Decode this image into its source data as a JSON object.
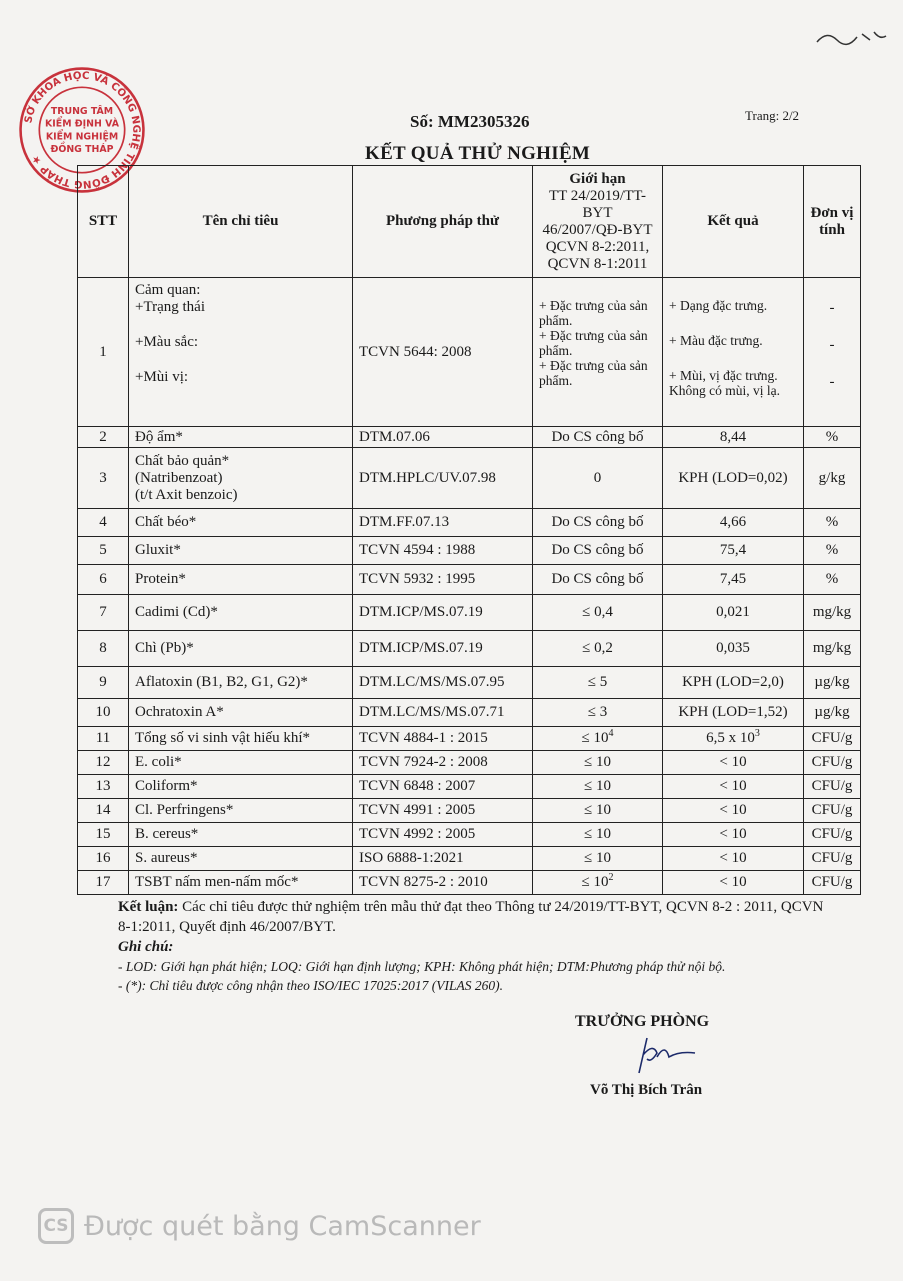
{
  "header": {
    "doc_number": "Số: MM2305326",
    "page": "Trang: 2/2",
    "title": "KẾT QUẢ THỬ NGHIỆM"
  },
  "stamp": {
    "outer_text": "SỞ KHOA HỌC VÀ CÔNG NGHỆ TỈNH ĐỒNG THÁP",
    "inner_lines": [
      "TRUNG TÂM",
      "KIỂM ĐỊNH VÀ",
      "KIỂM NGHIỆM",
      "ĐỒNG THÁP"
    ],
    "color": "#c8323c"
  },
  "table": {
    "headers": {
      "stt": "STT",
      "name": "Tên chỉ tiêu",
      "method": "Phương pháp thử",
      "limit": [
        "Giới hạn",
        "TT 24/2019/TT-",
        "BYT",
        "46/2007/QĐ-BYT",
        "QCVN 8-2:2011,",
        "QCVN 8-1:2011"
      ],
      "result": "Kết quả",
      "unit": [
        "Đơn vị",
        "tính"
      ]
    },
    "row1": {
      "stt": "1",
      "name": [
        "Cảm quan:",
        "+Trạng thái",
        "+Màu sắc:",
        "+Mùi vị:"
      ],
      "method": "TCVN 5644: 2008",
      "limit": [
        "+ Đặc trưng của sản phẩm.",
        "+ Đặc trưng của sản phẩm.",
        "+ Đặc trưng của sản phẩm."
      ],
      "result": [
        "+ Dạng đặc trưng.",
        "+ Màu đặc trưng.",
        "+ Mùi, vị đặc trưng. Không có mùi, vị lạ."
      ],
      "unit": [
        "-",
        "-",
        "-"
      ]
    },
    "row3": {
      "stt": "3",
      "name": [
        "Chất bảo quản*",
        "(Natribenzoat)",
        "(t/t Axit benzoic)"
      ],
      "method": "DTM.HPLC/UV.07.98",
      "limit": "0",
      "result": "KPH (LOD=0,02)",
      "unit": "g/kg"
    },
    "rows": [
      {
        "stt": "2",
        "name": "Độ ẩm*",
        "method": "DTM.07.06",
        "limit": "Do CS công bố",
        "limit_sup": "",
        "result": "8,44",
        "result_sup": "",
        "unit": "%"
      },
      {
        "stt": "4",
        "name": "Chất béo*",
        "method": "DTM.FF.07.13",
        "limit": "Do CS công bố",
        "limit_sup": "",
        "result": "4,66",
        "result_sup": "",
        "unit": "%"
      },
      {
        "stt": "5",
        "name": "Gluxit*",
        "method": "TCVN 4594 : 1988",
        "limit": "Do CS công bố",
        "limit_sup": "",
        "result": "75,4",
        "result_sup": "",
        "unit": "%"
      },
      {
        "stt": "6",
        "name": "Protein*",
        "method": "TCVN 5932 : 1995",
        "limit": "Do CS công bố",
        "limit_sup": "",
        "result": "7,45",
        "result_sup": "",
        "unit": "%"
      },
      {
        "stt": "7",
        "name": "Cadimi (Cd)*",
        "method": "DTM.ICP/MS.07.19",
        "limit": "≤ 0,4",
        "limit_sup": "",
        "result": "0,021",
        "result_sup": "",
        "unit": "mg/kg"
      },
      {
        "stt": "8",
        "name": "Chì (Pb)*",
        "method": "DTM.ICP/MS.07.19",
        "limit": "≤ 0,2",
        "limit_sup": "",
        "result": "0,035",
        "result_sup": "",
        "unit": "mg/kg"
      },
      {
        "stt": "9",
        "name": "Aflatoxin (B1, B2, G1, G2)*",
        "method": "DTM.LC/MS/MS.07.95",
        "limit": "≤ 5",
        "limit_sup": "",
        "result": "KPH (LOD=2,0)",
        "result_sup": "",
        "unit": "µg/kg"
      },
      {
        "stt": "10",
        "name": "Ochratoxin A*",
        "method": "DTM.LC/MS/MS.07.71",
        "limit": "≤ 3",
        "limit_sup": "",
        "result": "KPH (LOD=1,52)",
        "result_sup": "",
        "unit": "µg/kg"
      },
      {
        "stt": "11",
        "name": "Tổng số vi sinh vật hiếu khí*",
        "method": "TCVN 4884-1 : 2015",
        "limit": "≤ 10",
        "limit_sup": "4",
        "result": "6,5 x 10",
        "result_sup": "3",
        "unit": "CFU/g"
      },
      {
        "stt": "12",
        "name": "E. coli*",
        "method": "TCVN 7924-2 : 2008",
        "limit": "≤ 10",
        "limit_sup": "",
        "result": "< 10",
        "result_sup": "",
        "unit": "CFU/g"
      },
      {
        "stt": "13",
        "name": "Coliform*",
        "method": "TCVN 6848 : 2007",
        "limit": "≤ 10",
        "limit_sup": "",
        "result": "< 10",
        "result_sup": "",
        "unit": "CFU/g"
      },
      {
        "stt": "14",
        "name": "Cl. Perfringens*",
        "method": "TCVN 4991 : 2005",
        "limit": "≤ 10",
        "limit_sup": "",
        "result": "< 10",
        "result_sup": "",
        "unit": "CFU/g"
      },
      {
        "stt": "15",
        "name": "B. cereus*",
        "method": "TCVN 4992 : 2005",
        "limit": "≤ 10",
        "limit_sup": "",
        "result": "< 10",
        "result_sup": "",
        "unit": "CFU/g"
      },
      {
        "stt": "16",
        "name": "S. aureus*",
        "method": "ISO 6888-1:2021",
        "limit": "≤ 10",
        "limit_sup": "",
        "result": "< 10",
        "result_sup": "",
        "unit": "CFU/g"
      },
      {
        "stt": "17",
        "name": "TSBT nấm men-nấm mốc*",
        "method": "TCVN 8275-2 : 2010",
        "limit": "≤ 10",
        "limit_sup": "2",
        "result": "< 10",
        "result_sup": "",
        "unit": "CFU/g"
      }
    ]
  },
  "conclusion": {
    "label": "Kết luận:",
    "text": " Các chỉ tiêu được thử nghiệm trên mẫu thử đạt theo Thông tư 24/2019/TT-BYT, QCVN 8-2 : 2011, QCVN 8-1:2011, Quyết định 46/2007/BYT."
  },
  "notes": {
    "label": "Ghi chú:",
    "lines": [
      "- LOD: Giới hạn phát hiện; LOQ: Giới hạn định lượng; KPH: Không phát hiện; DTM:Phương pháp thử nội bộ.",
      "- (*): Chỉ tiêu được công nhận theo ISO/IEC 17025:2017 (VILAS 260)."
    ]
  },
  "signature": {
    "title": "TRƯỞNG PHÒNG",
    "name": "Võ Thị Bích Trân"
  },
  "watermark": {
    "logo": "CS",
    "text": "Được quét bằng CamScanner"
  }
}
